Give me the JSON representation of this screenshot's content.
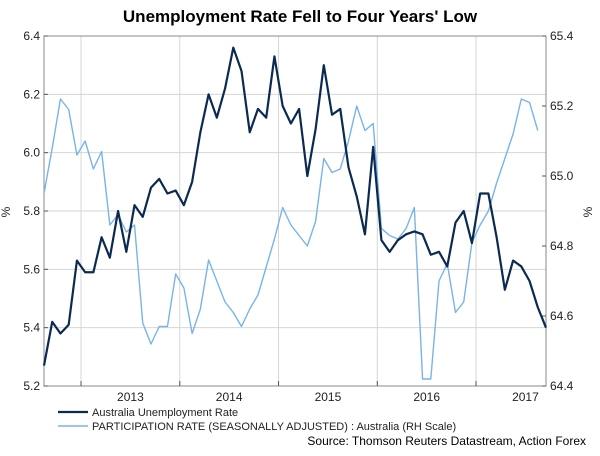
{
  "chart_data": {
    "type": "line",
    "title": "Unemployment Rate Fell to Four Years' Low",
    "ylabel_left": "%",
    "ylabel_right": "%",
    "x_ticks": [
      "2013",
      "2014",
      "2015",
      "2016",
      "2017"
    ],
    "year_start_index": [
      5,
      17,
      29,
      41,
      53
    ],
    "y_left": {
      "min": 5.2,
      "max": 6.4,
      "ticks": [
        "5.2",
        "5.4",
        "5.6",
        "5.8",
        "6.0",
        "6.2",
        "6.4"
      ]
    },
    "y_right": {
      "min": 64.4,
      "max": 65.4,
      "ticks": [
        "64.4",
        "64.6",
        "64.8",
        "65.0",
        "65.2",
        "65.4"
      ]
    },
    "grid": true,
    "series": [
      {
        "name": "Australia Unemployment Rate",
        "axis": "left",
        "color": "#0b2a52",
        "values": [
          5.27,
          5.42,
          5.38,
          5.41,
          5.63,
          5.59,
          5.59,
          5.71,
          5.64,
          5.8,
          5.66,
          5.82,
          5.78,
          5.88,
          5.91,
          5.86,
          5.87,
          5.82,
          5.9,
          6.07,
          6.2,
          6.12,
          6.22,
          6.36,
          6.28,
          6.07,
          6.15,
          6.12,
          6.33,
          6.16,
          6.1,
          6.15,
          5.92,
          6.08,
          6.3,
          6.13,
          6.15,
          5.95,
          5.85,
          5.72,
          6.02,
          5.7,
          5.66,
          5.7,
          5.72,
          5.73,
          5.72,
          5.65,
          5.66,
          5.61,
          5.76,
          5.8,
          5.69,
          5.86,
          5.86,
          5.71,
          5.53,
          5.63,
          5.61,
          5.56,
          5.47,
          5.4
        ]
      },
      {
        "name": "PARTICIPATION RATE (SEASONALLY ADJUSTED) : Australia (RH Scale)",
        "axis": "right",
        "color": "#78b4e8",
        "values": [
          64.95,
          65.08,
          65.22,
          65.19,
          65.06,
          65.1,
          65.02,
          65.07,
          64.86,
          64.89,
          64.84,
          64.86,
          64.58,
          64.52,
          64.57,
          64.57,
          64.72,
          64.68,
          64.55,
          64.62,
          64.76,
          64.7,
          64.64,
          64.61,
          64.57,
          64.62,
          64.66,
          64.74,
          64.82,
          64.91,
          64.86,
          64.83,
          64.8,
          64.87,
          65.05,
          65.01,
          65.02,
          65.1,
          65.2,
          65.13,
          65.15,
          64.85,
          64.83,
          64.82,
          64.85,
          64.91,
          64.42,
          64.42,
          64.7,
          64.75,
          64.61,
          64.64,
          64.81,
          64.86,
          64.9,
          64.98,
          65.05,
          65.12,
          65.22,
          65.21,
          65.13
        ]
      }
    ],
    "legend": [
      "Australia Unemployment Rate",
      "PARTICIPATION RATE (SEASONALLY ADJUSTED) : Australia (RH Scale)"
    ],
    "source": "Source: Thomson Reuters Datastream, Action Forex"
  }
}
